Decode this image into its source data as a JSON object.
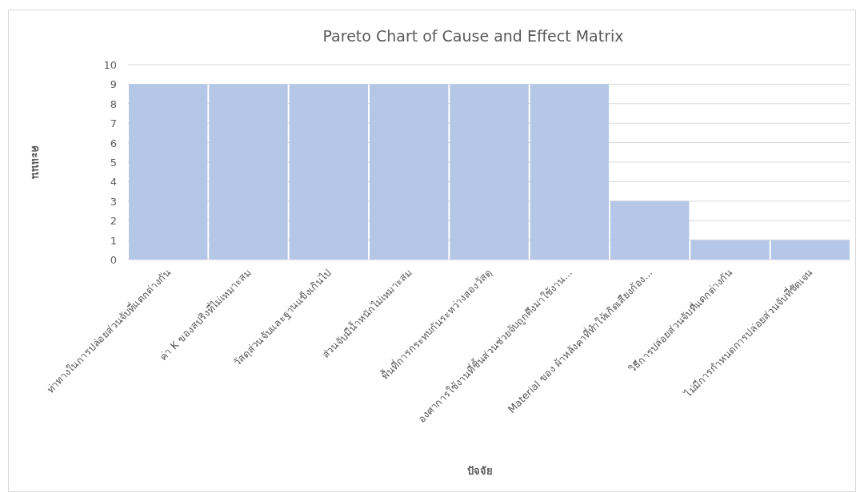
{
  "chart_data": {
    "type": "bar",
    "title": "Pareto Chart of Cause and Effect Matrix",
    "xlabel": "ปัจจัย",
    "ylabel": "คะแนน",
    "categories": [
      "ท่าทางในการปล่อยส่วนจับที่แตกต่างกัน",
      "ค่า K ของสปริงที่ไม่เหมาะสม",
      "วัสดุส่วนจับและฐานแข็งเกินไป",
      "ส่วนจับมีน้ำหนักไม่เหมาะสม",
      "พื้นที่การกระทบกันระหว่างสองวัสดุ",
      "องศาการใช้งานที่ชิ้นส่วนช่วยจับถูกดึงมาใช้งาน...",
      "Material ของ ผ้าหลังคาที่ทำให้เกิดเสียงก้อง...",
      "วิธีการปล่อยส่วนจับที่แตกต่างกัน",
      "ไม่มีการกำหนดการปล่อยส่วนจับที่ชัดเจน"
    ],
    "values": [
      9,
      9,
      9,
      9,
      9,
      9,
      3,
      1,
      1
    ],
    "color": "#b4c7e7",
    "ylim": [
      0,
      10
    ],
    "yticks": [
      0,
      1,
      2,
      3,
      4,
      5,
      6,
      7,
      8,
      9,
      10
    ],
    "grid": "y"
  }
}
